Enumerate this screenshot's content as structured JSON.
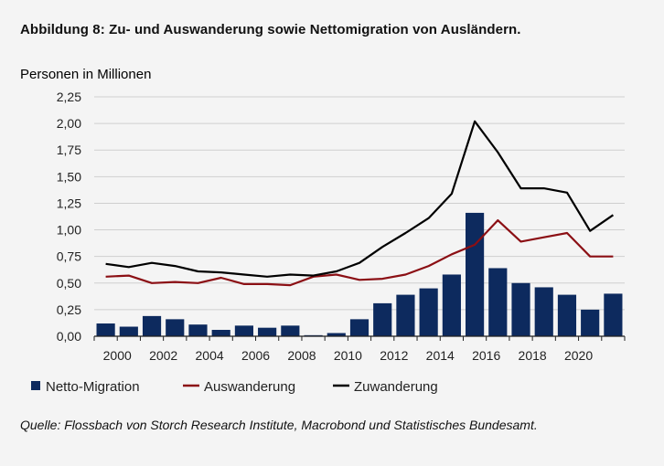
{
  "figure": {
    "title": "Abbildung 8: Zu- und Auswanderung sowie Nettomigration von Ausländern.",
    "source": "Quelle: Flossbach von Storch Research Institute, Macrobond und Statistisches Bundesamt."
  },
  "colors": {
    "bar": "#0d2a5e",
    "auswanderung": "#8b0f14",
    "zuwanderung": "#000000",
    "grid": "#cfcfcf",
    "axis": "#222222"
  },
  "chart_data": {
    "type": "bar",
    "ylabel": "Personen in Millionen",
    "ylim": [
      0,
      2.25
    ],
    "yticks": [
      "0,00",
      "0,25",
      "0,50",
      "0,75",
      "1,00",
      "1,25",
      "1,50",
      "1,75",
      "2,00",
      "2,25"
    ],
    "categories": [
      1999,
      2000,
      2001,
      2002,
      2003,
      2004,
      2005,
      2006,
      2007,
      2008,
      2009,
      2010,
      2011,
      2012,
      2013,
      2014,
      2015,
      2016,
      2017,
      2018,
      2019,
      2020,
      2021
    ],
    "xticks": [
      "2000",
      "2002",
      "2004",
      "2006",
      "2008",
      "2010",
      "2012",
      "2014",
      "2016",
      "2018",
      "2020"
    ],
    "series": [
      {
        "name": "Netto-Migration",
        "type": "bar",
        "values": [
          0.12,
          0.09,
          0.19,
          0.16,
          0.11,
          0.06,
          0.1,
          0.08,
          0.1,
          0.01,
          0.03,
          0.16,
          0.31,
          0.39,
          0.45,
          0.58,
          1.16,
          0.64,
          0.5,
          0.46,
          0.39,
          0.25,
          0.4
        ]
      },
      {
        "name": "Auswanderung",
        "type": "line",
        "values": [
          0.56,
          0.57,
          0.5,
          0.51,
          0.5,
          0.55,
          0.49,
          0.49,
          0.48,
          0.56,
          0.58,
          0.53,
          0.54,
          0.58,
          0.66,
          0.77,
          0.86,
          1.09,
          0.89,
          0.93,
          0.97,
          0.75,
          0.75
        ]
      },
      {
        "name": "Zuwanderung",
        "type": "line",
        "values": [
          0.68,
          0.65,
          0.69,
          0.66,
          0.61,
          0.6,
          0.58,
          0.56,
          0.58,
          0.57,
          0.61,
          0.69,
          0.84,
          0.97,
          1.11,
          1.34,
          2.02,
          1.73,
          1.39,
          1.39,
          1.35,
          0.99,
          1.14
        ]
      }
    ],
    "legend": [
      "Netto-Migration",
      "Auswanderung",
      "Zuwanderung"
    ],
    "legend_position": "bottom-left"
  }
}
